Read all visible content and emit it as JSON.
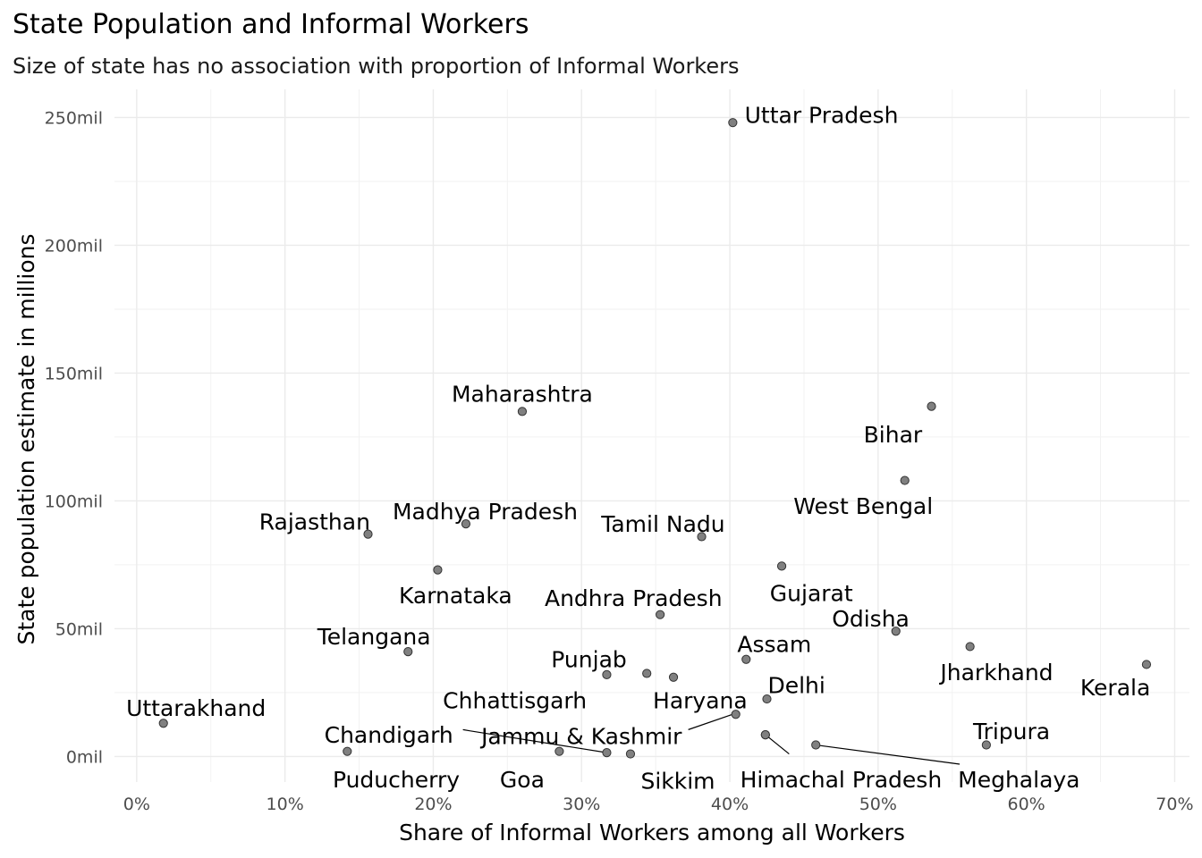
{
  "chart_data": {
    "type": "scatter",
    "title": "State Population and Informal Workers",
    "subtitle": "Size of state has no association with proportion of Informal Workers",
    "xlabel": "Share of Informal Workers among all Workers",
    "ylabel": "State population estimate in millions",
    "xlim": [
      -1.5,
      71
    ],
    "ylim": [
      -10,
      261
    ],
    "x_ticks": [
      {
        "value": 0,
        "label": "0%"
      },
      {
        "value": 10,
        "label": "10%"
      },
      {
        "value": 20,
        "label": "20%"
      },
      {
        "value": 30,
        "label": "30%"
      },
      {
        "value": 40,
        "label": "40%"
      },
      {
        "value": 50,
        "label": "50%"
      },
      {
        "value": 60,
        "label": "60%"
      },
      {
        "value": 70,
        "label": "70%"
      }
    ],
    "y_ticks": [
      {
        "value": 0,
        "label": "0mil"
      },
      {
        "value": 50,
        "label": "50mil"
      },
      {
        "value": 100,
        "label": "100mil"
      },
      {
        "value": 150,
        "label": "150mil"
      },
      {
        "value": 200,
        "label": "200mil"
      },
      {
        "value": 250,
        "label": "250mil"
      }
    ],
    "grid": true,
    "point_color": "#808080",
    "points": [
      {
        "label": "Uttar Pradesh",
        "x": 40.2,
        "y": 248,
        "lx": 41.0,
        "ly": 251,
        "anchor": "start"
      },
      {
        "label": "Maharashtra",
        "x": 26.0,
        "y": 135,
        "lx": 26.0,
        "ly": 142,
        "anchor": "middle"
      },
      {
        "label": "Bihar",
        "x": 53.6,
        "y": 137,
        "lx": 51.0,
        "ly": 126,
        "anchor": "middle"
      },
      {
        "label": "West Bengal",
        "x": 51.8,
        "y": 108,
        "lx": 49.0,
        "ly": 98,
        "anchor": "middle"
      },
      {
        "label": "Madhya Pradesh",
        "x": 22.2,
        "y": 91,
        "lx": 23.5,
        "ly": 96,
        "anchor": "middle"
      },
      {
        "label": "Rajasthan",
        "x": 15.6,
        "y": 87,
        "lx": 12.0,
        "ly": 92,
        "anchor": "middle"
      },
      {
        "label": "Tamil Nadu",
        "x": 38.1,
        "y": 86,
        "lx": 35.5,
        "ly": 91,
        "anchor": "middle"
      },
      {
        "label": "Gujarat",
        "x": 43.5,
        "y": 74.5,
        "lx": 45.5,
        "ly": 64,
        "anchor": "middle"
      },
      {
        "label": "Karnataka",
        "x": 20.3,
        "y": 73,
        "lx": 21.5,
        "ly": 63,
        "anchor": "middle"
      },
      {
        "label": "Andhra Pradesh",
        "x": 35.3,
        "y": 55.5,
        "lx": 33.5,
        "ly": 62,
        "anchor": "middle"
      },
      {
        "label": "Odisha",
        "x": 51.2,
        "y": 49,
        "lx": 49.5,
        "ly": 54,
        "anchor": "middle"
      },
      {
        "label": "Telangana",
        "x": 18.3,
        "y": 41,
        "lx": 16.0,
        "ly": 47,
        "anchor": "middle"
      },
      {
        "label": "Jharkhand",
        "x": 56.2,
        "y": 43,
        "lx": 58.0,
        "ly": 33,
        "anchor": "middle"
      },
      {
        "label": "Kerala",
        "x": 68.1,
        "y": 36,
        "lx": 66.0,
        "ly": 27,
        "anchor": "middle"
      },
      {
        "label": "Assam",
        "x": 41.1,
        "y": 38,
        "lx": 43.0,
        "ly": 44,
        "anchor": "middle"
      },
      {
        "label": "Punjab",
        "x": 31.7,
        "y": 32,
        "lx": 30.5,
        "ly": 38,
        "anchor": "middle"
      },
      {
        "label": "",
        "x": 34.4,
        "y": 32.5
      },
      {
        "label": "Chhattisgarh",
        "x": 36.2,
        "y": 31,
        "lx": 25.5,
        "ly": 22,
        "anchor": "middle"
      },
      {
        "label": "Delhi",
        "x": 42.5,
        "y": 22.5,
        "lx": 44.5,
        "ly": 28,
        "anchor": "middle"
      },
      {
        "label": "Haryana",
        "x": 40.4,
        "y": 16.5,
        "lx": 38.0,
        "ly": 22,
        "anchor": "middle"
      },
      {
        "label": "Uttarakhand",
        "x": 1.8,
        "y": 13,
        "lx": 4.0,
        "ly": 19,
        "anchor": "middle"
      },
      {
        "label": "Tripura",
        "x": 57.3,
        "y": 4.5,
        "lx": 59.0,
        "ly": 10,
        "anchor": "middle"
      },
      {
        "label": "Jammu & Kashmir",
        "x": 42.4,
        "y": 8.5,
        "lx": 30.0,
        "ly": 8,
        "anchor": "middle"
      },
      {
        "label": "Chandigarh",
        "x": 31.7,
        "y": 1.5,
        "lx": 17.0,
        "ly": 8.5,
        "anchor": "middle"
      },
      {
        "label": "Meghalaya",
        "x": 45.8,
        "y": 4.5,
        "lx": 59.5,
        "ly": -9,
        "anchor": "middle"
      },
      {
        "label": "Puducherry",
        "x": 14.2,
        "y": 2,
        "lx": 17.5,
        "ly": -9,
        "anchor": "middle"
      },
      {
        "label": "Goa",
        "x": 28.5,
        "y": 2,
        "lx": 26.0,
        "ly": -9,
        "anchor": "middle"
      },
      {
        "label": "Sikkim",
        "x": 33.3,
        "y": 1,
        "lx": 36.5,
        "ly": -9.5,
        "anchor": "middle"
      },
      {
        "label": "Himachal Pradesh",
        "x": 42.4,
        "y": 8.5,
        "lx": 47.5,
        "ly": -9,
        "anchor": "middle"
      }
    ],
    "leader_lines": [
      {
        "from": [
          40.2,
          16.5
        ],
        "to": [
          37.2,
          10.5
        ]
      },
      {
        "from": [
          22.5,
          10
        ],
        "to": [
          31.7,
          1.5
        ]
      },
      {
        "from": [
          22.5,
          10
        ],
        "to": [
          22.0,
          10.5
        ]
      },
      {
        "from": [
          42.4,
          8.5
        ],
        "to": [
          44.0,
          1
        ]
      },
      {
        "from": [
          45.8,
          4.5
        ],
        "to": [
          55.5,
          -3
        ]
      }
    ]
  }
}
